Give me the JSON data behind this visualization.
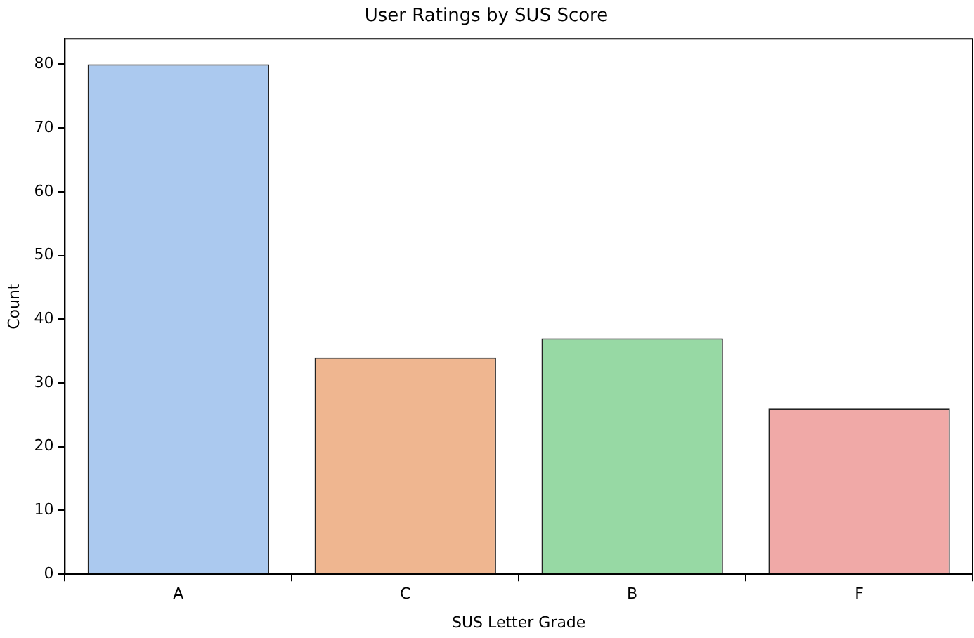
{
  "chart_data": {
    "type": "bar",
    "title": "User Ratings by SUS Score",
    "xlabel": "SUS Letter Grade",
    "ylabel": "Count",
    "categories": [
      "A",
      "C",
      "B",
      "F"
    ],
    "values": [
      80,
      34,
      37,
      26
    ],
    "colors": [
      "#abc9ef",
      "#efb690",
      "#97d9a4",
      "#f0a9a7"
    ],
    "ylim": [
      0,
      84
    ],
    "yticks": [
      0,
      10,
      20,
      30,
      40,
      50,
      60,
      70,
      80
    ],
    "grid": false,
    "legend": false
  }
}
